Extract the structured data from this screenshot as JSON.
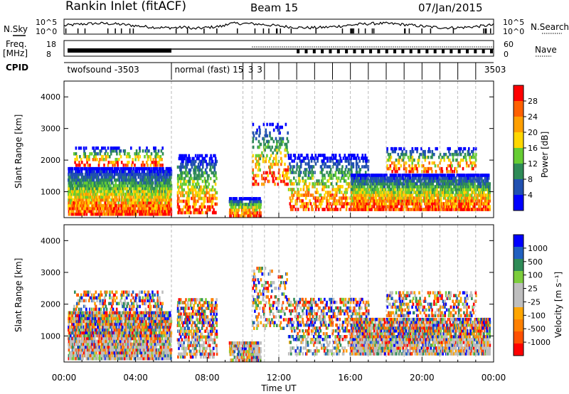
{
  "header": {
    "station": "Rankin Inlet (fitACF)",
    "beam": "Beam 15",
    "date": "07/Jan/2015"
  },
  "left_labels": {
    "nsky": "N.Sky",
    "freq": "Freq.",
    "freq_unit": "[MHz]",
    "cpid": "CPID"
  },
  "right_labels": {
    "nsearch": "N.Search",
    "nave": "Nave"
  },
  "cpid_labels": [
    {
      "t": 0.1,
      "text": "twofsound -3503"
    },
    {
      "t": 6.1,
      "text": "normal (fast) 15"
    },
    {
      "t": 10.2,
      "text": "3"
    },
    {
      "t": 10.7,
      "text": "3"
    },
    {
      "t": 23.4,
      "text": "3503"
    }
  ],
  "colors": {
    "power_scale": [
      "#0000ff",
      "#2050b0",
      "#2e8b57",
      "#66cd33",
      "#ffd700",
      "#ff9f00",
      "#ff6000",
      "#ff0000"
    ],
    "velocity_scale": [
      "#ff0000",
      "#ff5000",
      "#ff8000",
      "#ffa500",
      "#bebebe",
      "#bebebe",
      "#7ccd3c",
      "#2e8b57",
      "#2060c0",
      "#0000ff"
    ]
  },
  "chart_data": [
    {
      "type": "line",
      "name": "noise-panel",
      "ylabel_left": "N.Sky",
      "ylabel_right": "N.Search",
      "yticks": [
        "10^5",
        "10^0"
      ],
      "xlim": [
        0,
        24
      ]
    },
    {
      "type": "line",
      "name": "frequency-panel",
      "ylabel_left": "Freq. [MHz]",
      "ylabel_right": "Nave",
      "yticks_left": [
        "18",
        "8"
      ],
      "yticks_right": [
        "60",
        "0"
      ],
      "ylim_left": [
        8,
        18
      ],
      "ylim_right": [
        0,
        60
      ]
    },
    {
      "type": "heatmap",
      "name": "power-panel",
      "ylabel": "Slant Range [km]",
      "yticks": [
        1000,
        2000,
        3000,
        4000
      ],
      "ylim": [
        180,
        4500
      ],
      "xlim": [
        0,
        24
      ],
      "colorbar_label": "Power [dB]",
      "colorbar_ticks": [
        "28",
        "24",
        "20",
        "16",
        "12",
        "8",
        "4"
      ]
    },
    {
      "type": "heatmap",
      "name": "velocity-panel",
      "ylabel": "Slant Range [km]",
      "yticks": [
        1000,
        2000,
        3000,
        4000
      ],
      "ylim": [
        180,
        4500
      ],
      "xlim": [
        0,
        24
      ],
      "colorbar_label": "Velocity [m s⁻¹]",
      "colorbar_ticks": [
        "1000",
        "500",
        "100",
        "25",
        "-25",
        "-100",
        "-500",
        "-1000"
      ],
      "xlabel": "Time UT",
      "xticks": [
        "00:00",
        "04:00",
        "08:00",
        "12:00",
        "16:00",
        "20:00",
        "00:00"
      ]
    }
  ]
}
